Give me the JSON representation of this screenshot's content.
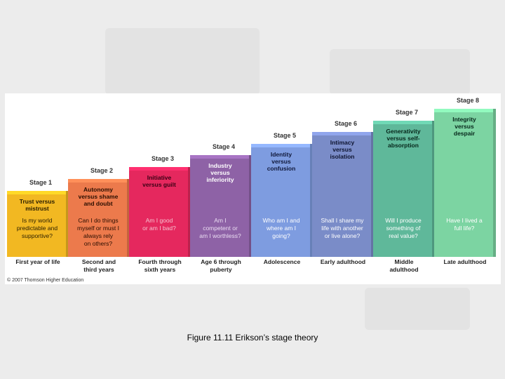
{
  "stages": [
    {
      "label": "Stage 1",
      "conflict": "Trust versus\nmistrust",
      "question": "Is my world\npredictable and\nsupportive?",
      "age": "First year of life",
      "color": "#f2b822",
      "conflict_color": "#2a1e00",
      "question_color": "#2a1e00"
    },
    {
      "label": "Stage 2",
      "conflict": "Autonomy\nversus shame\nand doubt",
      "question": "Can I do things\nmyself or must I\nalways rely\non others?",
      "age": "Second and\nthird years",
      "color": "#ec7a4c",
      "conflict_color": "#2a0e00",
      "question_color": "#2a0e00"
    },
    {
      "label": "Stage 3",
      "conflict": "Initiative\nversus guilt",
      "question": "Am I good\nor am I bad?",
      "age": "Fourth through\nsixth years",
      "color": "#e5285e",
      "conflict_color": "#3a0014",
      "question_color": "#f6c2d0"
    },
    {
      "label": "Stage 4",
      "conflict": "Industry\nversus\ninferiority",
      "question": "Am I\ncompetent or\nam I worthless?",
      "age": "Age 6 through\npuberty",
      "color": "#8e62a6",
      "conflict_color": "#ffffff",
      "question_color": "#eadcf2"
    },
    {
      "label": "Stage 5",
      "conflict": "Identity\nversus\nconfusion",
      "question": "Who am I and\nwhere am I\ngoing?",
      "age": "Adolescence",
      "color": "#7e9ce0",
      "conflict_color": "#10183a",
      "question_color": "#ffffff"
    },
    {
      "label": "Stage 6",
      "conflict": "Intimacy\nversus\nisolation",
      "question": "Shall I share my\nlife with another\nor live alone?",
      "age": "Early adulthood",
      "color": "#7a8cc8",
      "conflict_color": "#0e1430",
      "question_color": "#ffffff"
    },
    {
      "label": "Stage 7",
      "conflict": "Generativity\nversus self-\nabsorption",
      "question": "Will I produce\nsomething of\nreal value?",
      "age": "Middle\nadulthood",
      "color": "#5fb89a",
      "conflict_color": "#06261a",
      "question_color": "#ffffff"
    },
    {
      "label": "Stage 8",
      "conflict": "Integrity\nversus\ndespair",
      "question": "Have I lived a\nfull life?",
      "age": "Late adulthood",
      "color": "#7cd4a2",
      "conflict_color": "#06261a",
      "question_color": "#ffffff"
    }
  ],
  "copyright": "© 2007 Thomson Higher Education",
  "caption": "Figure 11.11  Erikson’s stage theory"
}
